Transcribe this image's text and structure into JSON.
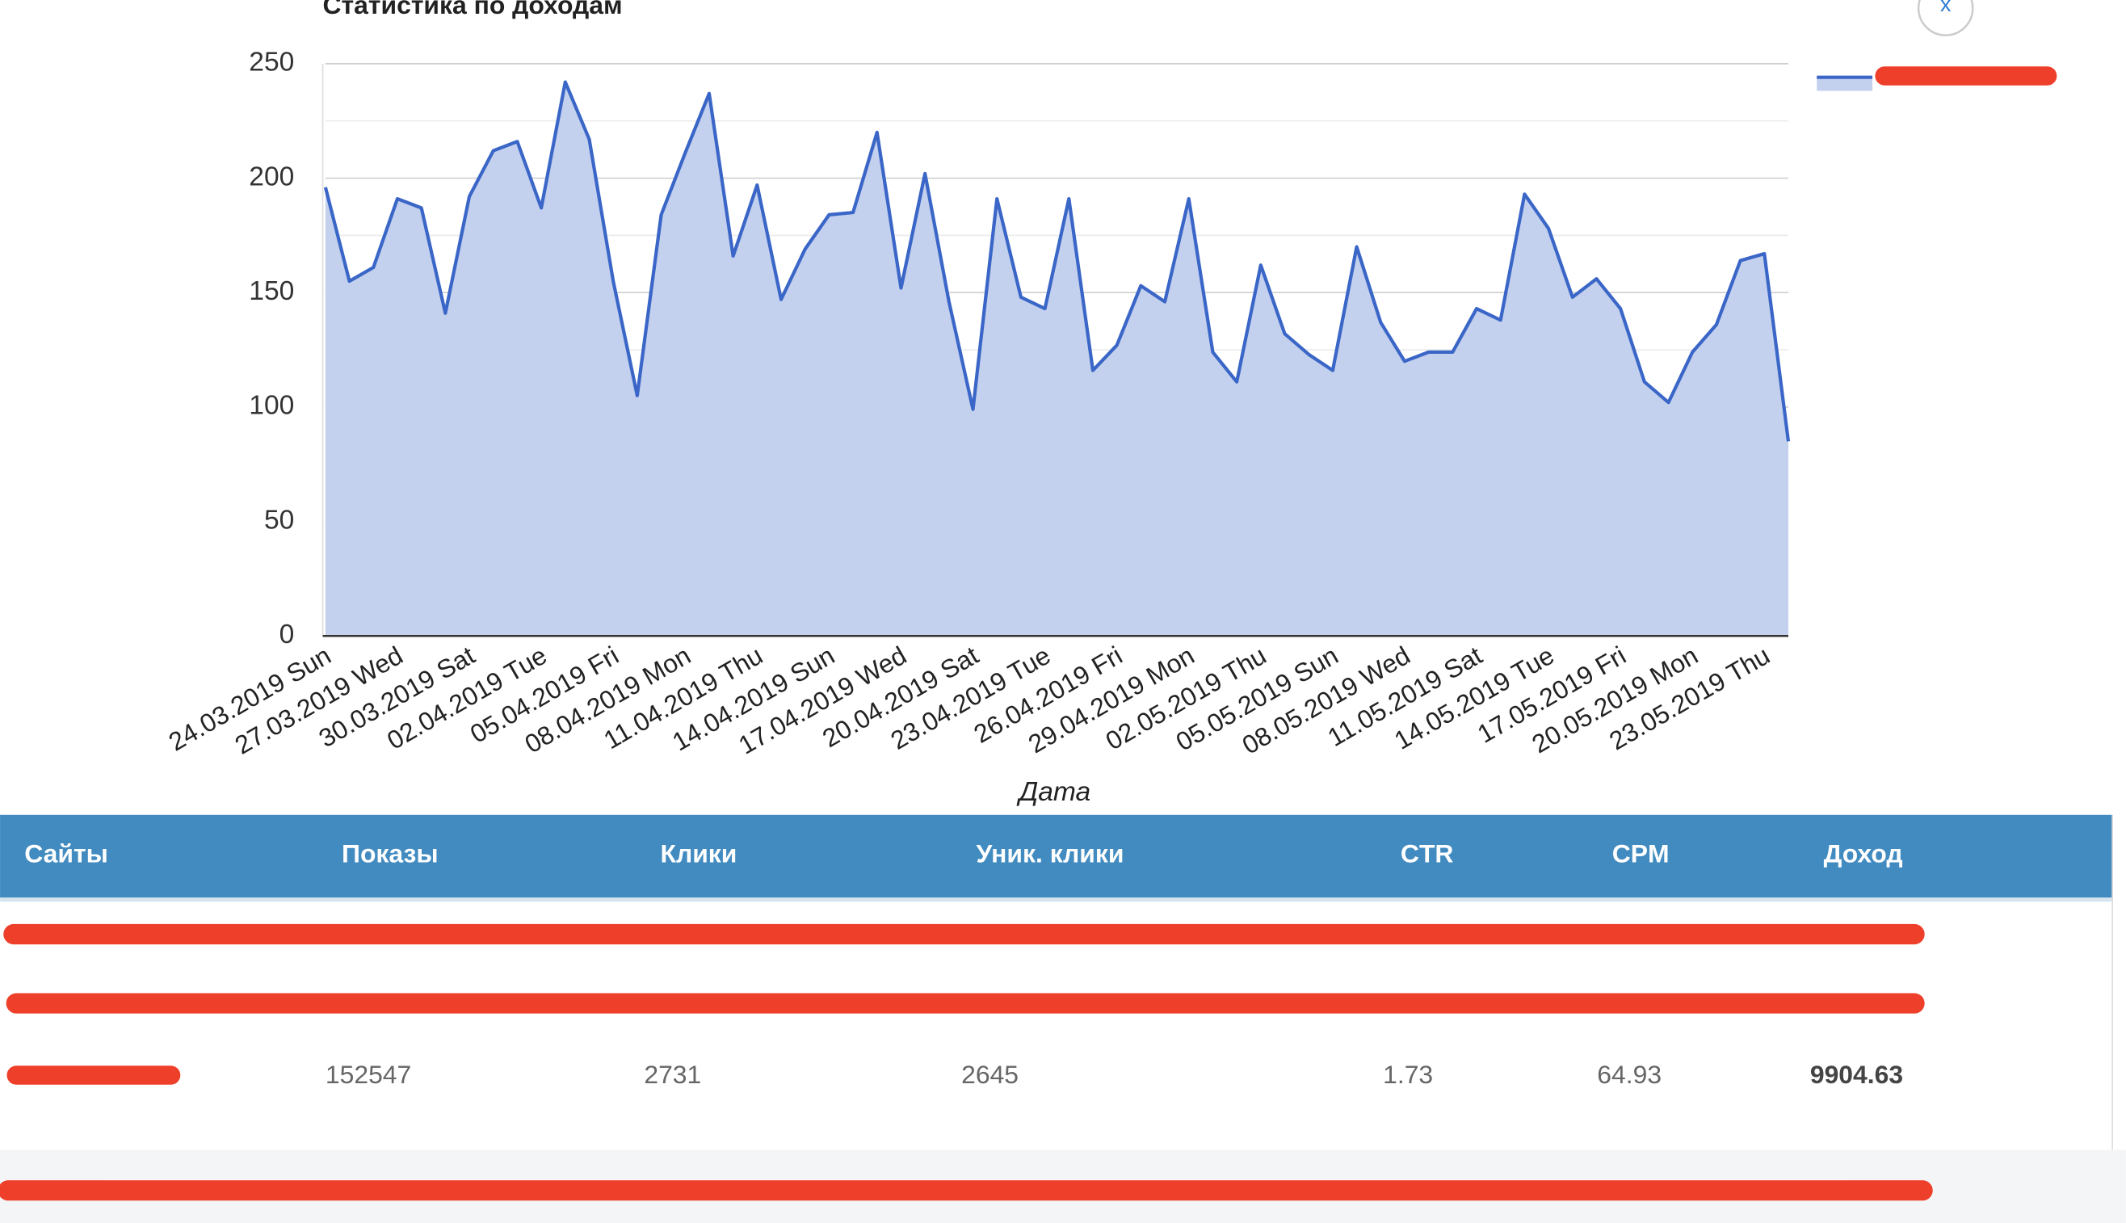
{
  "chart_data": {
    "type": "area",
    "title": "Статистика по доходам",
    "x_label": "Дата",
    "categories": [
      "24.03.2019 Sun",
      null,
      null,
      "27.03.2019 Wed",
      null,
      null,
      "30.03.2019 Sat",
      null,
      null,
      "02.04.2019 Tue",
      null,
      null,
      "05.04.2019 Fri",
      null,
      null,
      "08.04.2019 Mon",
      null,
      null,
      "11.04.2019 Thu",
      null,
      null,
      "14.04.2019 Sun",
      null,
      null,
      "17.04.2019 Wed",
      null,
      null,
      "20.04.2019 Sat",
      null,
      null,
      "23.04.2019 Tue",
      null,
      null,
      "26.04.2019 Fri",
      null,
      null,
      "29.04.2019 Mon",
      null,
      null,
      "02.05.2019 Thu",
      null,
      null,
      "05.05.2019 Sun",
      null,
      null,
      "08.05.2019 Wed",
      null,
      null,
      "11.05.2019 Sat",
      null,
      null,
      "14.05.2019 Tue",
      null,
      null,
      "17.05.2019 Fri",
      null,
      null,
      "20.05.2019 Mon",
      null,
      null,
      "23.05.2019 Thu",
      null
    ],
    "values": [
      196,
      155,
      161,
      191,
      187,
      141,
      192,
      212,
      216,
      187,
      242,
      217,
      155,
      105,
      184,
      211,
      237,
      166,
      197,
      147,
      169,
      184,
      185,
      220,
      152,
      202,
      146,
      99,
      191,
      148,
      143,
      191,
      116,
      127,
      153,
      146,
      191,
      124,
      111,
      162,
      132,
      123,
      116,
      170,
      137,
      120,
      124,
      124,
      143,
      138,
      193,
      178,
      148,
      156,
      143,
      111,
      102,
      124,
      136,
      164,
      167,
      85
    ],
    "color": "#3a66c7",
    "fill": "#c3d0ee",
    "ylim": [
      0,
      250
    ],
    "yticks": [
      0,
      50,
      100,
      150,
      200,
      250
    ],
    "grid": true
  },
  "close_button": "x",
  "table": {
    "columns": [
      "Сайты",
      "Показы",
      "Клики",
      "Уник. клики",
      "CTR",
      "CPM",
      "Доход"
    ],
    "row": [
      "152547",
      "2731",
      "2645",
      "1.73",
      "64.93",
      "9904.63"
    ]
  }
}
